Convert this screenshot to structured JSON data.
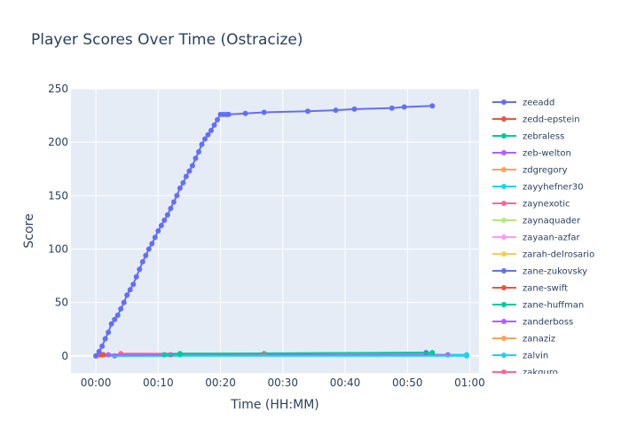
{
  "chart_data": {
    "type": "line",
    "title": "Player Scores Over Time (Ostracize)",
    "xlabel": "Time (HH:MM)",
    "ylabel": "Score",
    "x_unit": "minutes",
    "xlim": [
      -4,
      61.5
    ],
    "ylim": [
      -16,
      250
    ],
    "x_tick_values": [
      0,
      10,
      20,
      30,
      40,
      50,
      60
    ],
    "x_tick_labels": [
      "00:00",
      "00:10",
      "00:20",
      "00:30",
      "00:40",
      "00:50",
      "01:00"
    ],
    "y_ticks": [
      0,
      50,
      100,
      150,
      200,
      250
    ],
    "grid": true,
    "legend_position": "right",
    "series": [
      {
        "name": "zeeadd",
        "color": "#636efa",
        "x": [
          0,
          0.5,
          1,
          1.5,
          2,
          2.5,
          3,
          3.5,
          4,
          4.5,
          5,
          5.5,
          6,
          6.5,
          7,
          7.5,
          8,
          8.5,
          9,
          9.5,
          10,
          10.5,
          11,
          11.5,
          12,
          12.5,
          13,
          13.5,
          14,
          14.5,
          15,
          15.5,
          16,
          16.5,
          17,
          17.5,
          18,
          18.5,
          19,
          19.5,
          20,
          20.5,
          21,
          21.3,
          24,
          27,
          34,
          38.5,
          41.5,
          47.5,
          49.5,
          54
        ],
        "y": [
          0,
          4,
          9,
          16,
          22,
          30,
          34,
          38,
          44,
          50,
          57,
          62,
          67,
          74,
          81,
          88,
          94,
          100,
          105,
          111,
          117,
          122,
          127,
          132,
          138,
          144,
          150,
          157,
          162,
          168,
          173,
          178,
          185,
          191,
          198,
          203,
          207,
          211,
          216,
          221,
          226,
          226,
          226,
          226,
          227,
          228,
          229,
          230,
          231,
          232,
          233,
          234
        ]
      },
      {
        "name": "zedd-epstein",
        "color": "#ef553b",
        "x": [
          0.8,
          1.0,
          1.2
        ],
        "y": [
          1,
          1,
          1
        ]
      },
      {
        "name": "zebraless",
        "color": "#00cc96",
        "x": [
          11,
          13.5,
          54
        ],
        "y": [
          1,
          2,
          3
        ]
      },
      {
        "name": "zeb-welton",
        "color": "#ab63fa",
        "x": [
          2,
          12
        ],
        "y": [
          1,
          1
        ]
      },
      {
        "name": "zdgregory",
        "color": "#ffa15a",
        "x": [
          0
        ],
        "y": [
          0
        ]
      },
      {
        "name": "zayyhefner30",
        "color": "#19d3f3",
        "x": [
          0,
          59.5
        ],
        "y": [
          0,
          0
        ]
      },
      {
        "name": "zaynexotic",
        "color": "#ff6692",
        "x": [
          4,
          27
        ],
        "y": [
          2,
          2
        ]
      },
      {
        "name": "zaynaquader",
        "color": "#b6e880",
        "x": [
          0.2
        ],
        "y": [
          0
        ]
      },
      {
        "name": "zayaan-azfar",
        "color": "#ff97ff",
        "x": [
          0.4
        ],
        "y": [
          0
        ]
      },
      {
        "name": "zarah-delrosario",
        "color": "#fecb52",
        "x": [
          0.6
        ],
        "y": [
          0
        ]
      },
      {
        "name": "zane-zukovsky",
        "color": "#636efa",
        "x": [
          1,
          53
        ],
        "y": [
          1,
          3
        ]
      },
      {
        "name": "zane-swift",
        "color": "#ef553b",
        "x": [
          0.9
        ],
        "y": [
          1
        ]
      },
      {
        "name": "zane-huffman",
        "color": "#00cc96",
        "x": [
          13.5,
          27
        ],
        "y": [
          1,
          2
        ]
      },
      {
        "name": "zanderboss",
        "color": "#ab63fa",
        "x": [
          3,
          56.5
        ],
        "y": [
          0,
          1
        ]
      },
      {
        "name": "zanaziz",
        "color": "#ffa15a",
        "x": [
          0.1
        ],
        "y": [
          0
        ]
      },
      {
        "name": "zalvin",
        "color": "#19d3f3",
        "x": [
          0,
          59.5
        ],
        "y": [
          0,
          1
        ]
      },
      {
        "name": "zakguro",
        "color": "#ff6692",
        "x": [
          0.3
        ],
        "y": [
          0
        ]
      }
    ]
  }
}
